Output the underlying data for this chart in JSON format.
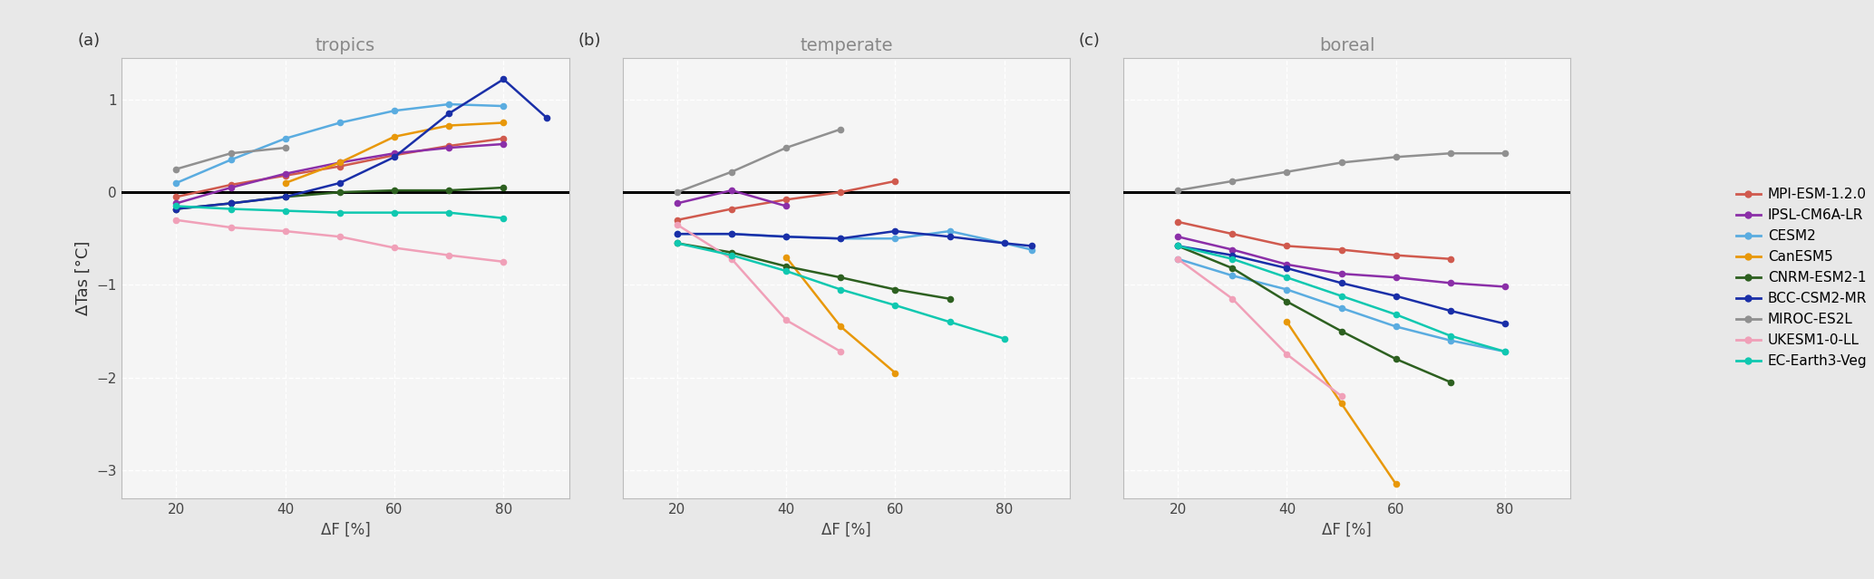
{
  "models": [
    {
      "name": "MPI-ESM-1.2.0",
      "color": "#d05a4e"
    },
    {
      "name": "IPSL-CM6A-LR",
      "color": "#8b2fa8"
    },
    {
      "name": "CESM2",
      "color": "#5aace0"
    },
    {
      "name": "CanESM5",
      "color": "#e8980a"
    },
    {
      "name": "CNRM-ESM2-1",
      "color": "#2d6020"
    },
    {
      "name": "BCC-CSM2-MR",
      "color": "#1a2fa8"
    },
    {
      "name": "MIROC-ES2L",
      "color": "#909090"
    },
    {
      "name": "UKESM1-0-LL",
      "color": "#f0a0b8"
    },
    {
      "name": "EC-Earth3-Veg",
      "color": "#10c8b0"
    }
  ],
  "tropics": {
    "MPI-ESM-1.2.0": {
      "x": [
        20,
        30,
        40,
        50,
        60,
        70,
        80
      ],
      "y": [
        -0.05,
        0.08,
        0.18,
        0.28,
        0.4,
        0.5,
        0.58
      ]
    },
    "IPSL-CM6A-LR": {
      "x": [
        20,
        30,
        40,
        50,
        60,
        70,
        80
      ],
      "y": [
        -0.12,
        0.05,
        0.2,
        0.32,
        0.42,
        0.48,
        0.52
      ]
    },
    "CESM2": {
      "x": [
        20,
        30,
        40,
        50,
        60,
        70,
        80
      ],
      "y": [
        0.1,
        0.35,
        0.58,
        0.75,
        0.88,
        0.95,
        0.93
      ]
    },
    "CanESM5": {
      "x": [
        40,
        50,
        60,
        70,
        80
      ],
      "y": [
        0.1,
        0.32,
        0.6,
        0.72,
        0.75
      ]
    },
    "CNRM-ESM2-1": {
      "x": [
        20,
        30,
        40,
        50,
        60,
        70,
        80
      ],
      "y": [
        -0.18,
        -0.12,
        -0.05,
        0.0,
        0.02,
        0.02,
        0.05
      ]
    },
    "BCC-CSM2-MR": {
      "x": [
        20,
        30,
        40,
        50,
        60,
        70,
        80,
        88
      ],
      "y": [
        -0.18,
        -0.12,
        -0.05,
        0.1,
        0.38,
        0.85,
        1.22,
        0.8
      ]
    },
    "MIROC-ES2L": {
      "x": [
        20,
        30,
        40
      ],
      "y": [
        0.25,
        0.42,
        0.48
      ]
    },
    "UKESM1-0-LL": {
      "x": [
        20,
        30,
        40,
        50,
        60,
        70,
        80
      ],
      "y": [
        -0.3,
        -0.38,
        -0.42,
        -0.48,
        -0.6,
        -0.68,
        -0.75
      ]
    },
    "EC-Earth3-Veg": {
      "x": [
        20,
        30,
        40,
        50,
        60,
        70,
        80
      ],
      "y": [
        -0.15,
        -0.18,
        -0.2,
        -0.22,
        -0.22,
        -0.22,
        -0.28
      ]
    }
  },
  "temperate": {
    "MPI-ESM-1.2.0": {
      "x": [
        20,
        30,
        40,
        50,
        60
      ],
      "y": [
        -0.3,
        -0.18,
        -0.08,
        0.0,
        0.12
      ]
    },
    "IPSL-CM6A-LR": {
      "x": [
        20,
        30,
        40
      ],
      "y": [
        -0.12,
        0.02,
        -0.15
      ]
    },
    "CESM2": {
      "x": [
        20,
        30,
        40,
        50,
        60,
        70,
        80,
        85
      ],
      "y": [
        -0.45,
        -0.45,
        -0.48,
        -0.5,
        -0.5,
        -0.42,
        -0.55,
        -0.62
      ]
    },
    "CanESM5": {
      "x": [
        40,
        50,
        60
      ],
      "y": [
        -0.7,
        -1.45,
        -1.95
      ]
    },
    "CNRM-ESM2-1": {
      "x": [
        20,
        30,
        40,
        50,
        60,
        70
      ],
      "y": [
        -0.55,
        -0.65,
        -0.8,
        -0.92,
        -1.05,
        -1.15
      ]
    },
    "BCC-CSM2-MR": {
      "x": [
        20,
        30,
        40,
        50,
        60,
        70,
        80,
        85
      ],
      "y": [
        -0.45,
        -0.45,
        -0.48,
        -0.5,
        -0.42,
        -0.48,
        -0.55,
        -0.58
      ]
    },
    "MIROC-ES2L": {
      "x": [
        20,
        30,
        40,
        50
      ],
      "y": [
        0.0,
        0.22,
        0.48,
        0.68
      ]
    },
    "UKESM1-0-LL": {
      "x": [
        20,
        30,
        40,
        50
      ],
      "y": [
        -0.35,
        -0.72,
        -1.38,
        -1.72
      ]
    },
    "EC-Earth3-Veg": {
      "x": [
        20,
        30,
        40,
        50,
        60,
        70,
        80
      ],
      "y": [
        -0.55,
        -0.68,
        -0.85,
        -1.05,
        -1.22,
        -1.4,
        -1.58
      ]
    }
  },
  "boreal": {
    "MPI-ESM-1.2.0": {
      "x": [
        20,
        30,
        40,
        50,
        60,
        70
      ],
      "y": [
        -0.32,
        -0.45,
        -0.58,
        -0.62,
        -0.68,
        -0.72
      ]
    },
    "IPSL-CM6A-LR": {
      "x": [
        20,
        30,
        40,
        50,
        60,
        70,
        80
      ],
      "y": [
        -0.48,
        -0.62,
        -0.78,
        -0.88,
        -0.92,
        -0.98,
        -1.02
      ]
    },
    "CESM2": {
      "x": [
        20,
        30,
        40,
        50,
        60,
        70,
        80
      ],
      "y": [
        -0.72,
        -0.9,
        -1.05,
        -1.25,
        -1.45,
        -1.6,
        -1.72
      ]
    },
    "CanESM5": {
      "x": [
        40,
        50,
        60
      ],
      "y": [
        -1.4,
        -2.28,
        -3.15
      ]
    },
    "CNRM-ESM2-1": {
      "x": [
        20,
        30,
        40,
        50,
        60,
        70
      ],
      "y": [
        -0.58,
        -0.82,
        -1.18,
        -1.5,
        -1.8,
        -2.05
      ]
    },
    "BCC-CSM2-MR": {
      "x": [
        20,
        30,
        40,
        50,
        60,
        70,
        80
      ],
      "y": [
        -0.58,
        -0.68,
        -0.82,
        -0.98,
        -1.12,
        -1.28,
        -1.42
      ]
    },
    "MIROC-ES2L": {
      "x": [
        20,
        30,
        40,
        50,
        60,
        70,
        80
      ],
      "y": [
        0.02,
        0.12,
        0.22,
        0.32,
        0.38,
        0.42,
        0.42
      ]
    },
    "UKESM1-0-LL": {
      "x": [
        20,
        30,
        40,
        50
      ],
      "y": [
        -0.72,
        -1.15,
        -1.75,
        -2.2
      ]
    },
    "EC-Earth3-Veg": {
      "x": [
        20,
        30,
        40,
        50,
        60,
        70,
        80
      ],
      "y": [
        -0.58,
        -0.72,
        -0.92,
        -1.12,
        -1.32,
        -1.55,
        -1.72
      ]
    }
  },
  "ylim": [
    -3.3,
    1.45
  ],
  "xlim": [
    10,
    92
  ],
  "xticks": [
    20,
    40,
    60,
    80
  ],
  "yticks_left": [
    -3.0,
    -2.0,
    -1.0,
    0.0,
    1.0
  ],
  "bg_color": "#e8e8e8",
  "plot_bg": "#f5f5f5",
  "grid_color": "#ffffff",
  "ylabel": "ΔTas [°C]",
  "xlabel": "ΔF [%]",
  "titles": [
    "tropics",
    "temperate",
    "boreal"
  ],
  "panel_labels": [
    "(a)",
    "(b)",
    "(c)"
  ]
}
